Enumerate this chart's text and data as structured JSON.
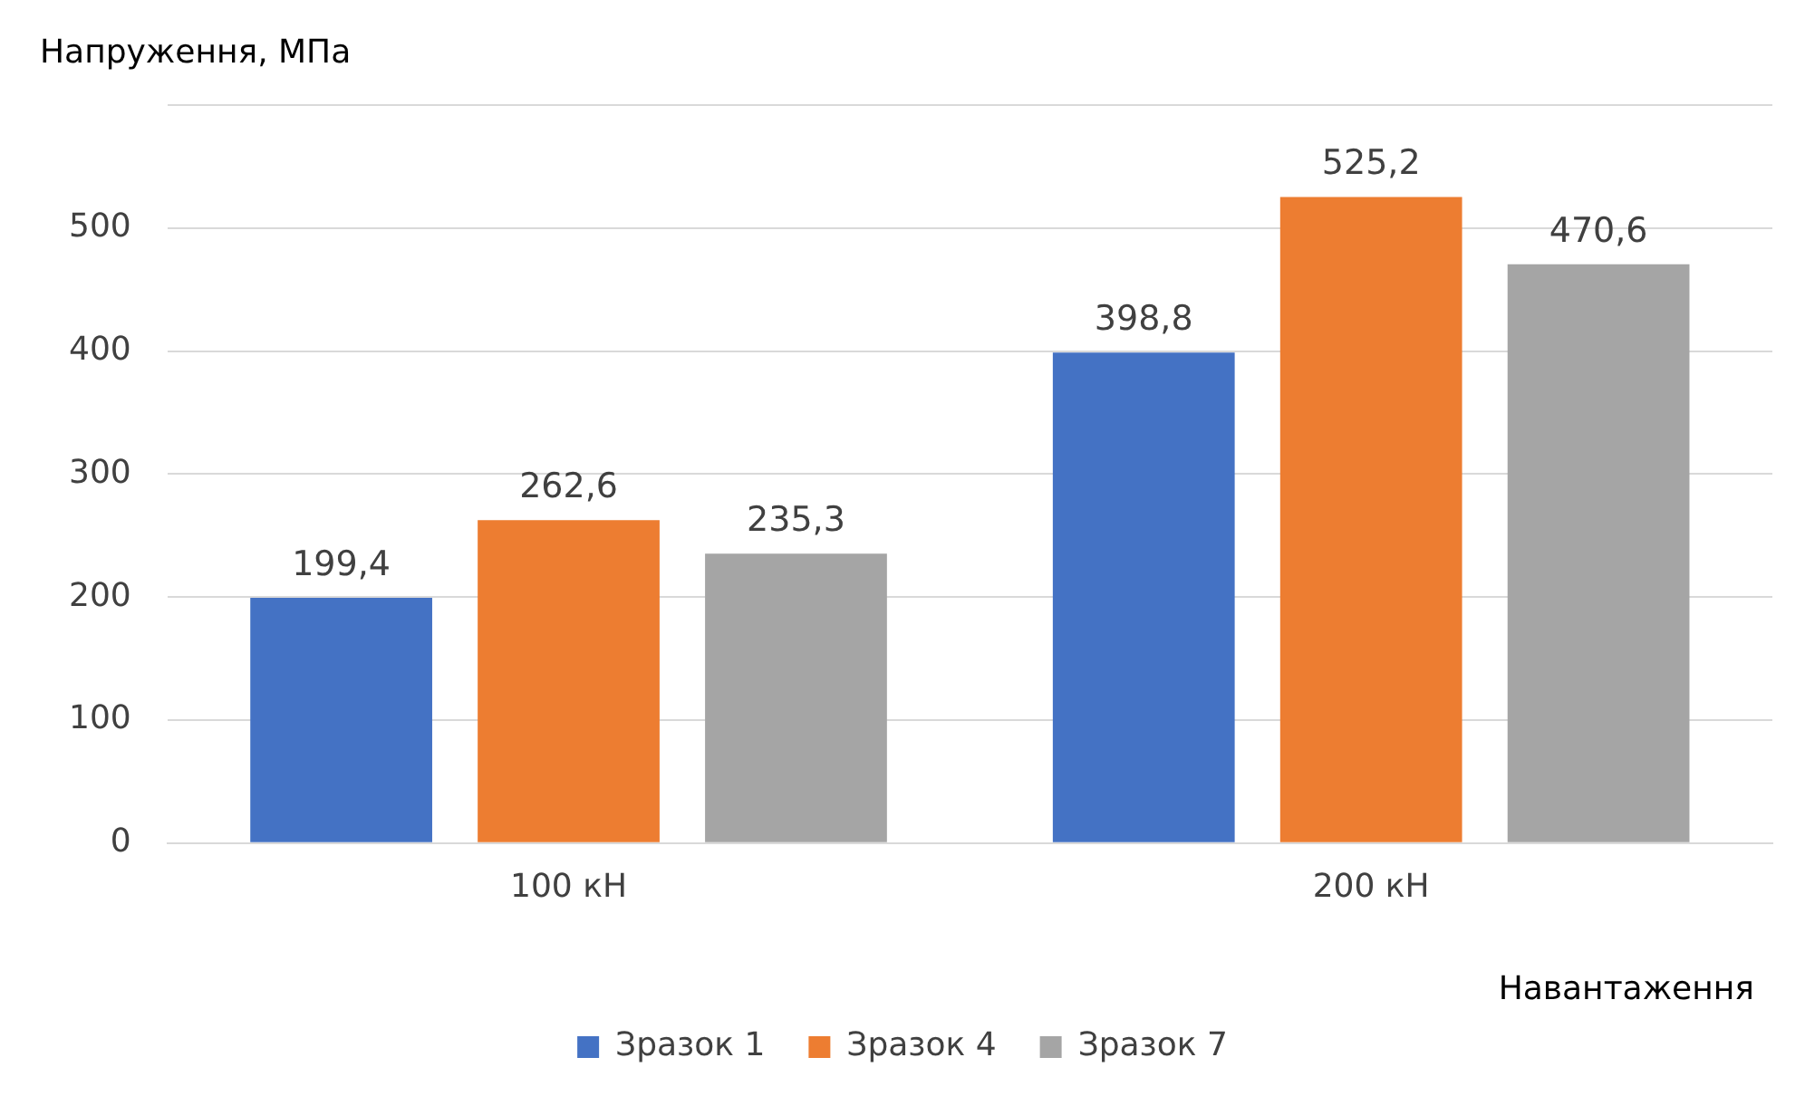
{
  "chart_data": {
    "type": "bar",
    "ylabel": "Напруження, МПа",
    "xlabel": "Навантаження",
    "categories": [
      "100 кН",
      "200 кН"
    ],
    "series": [
      {
        "name": "Зразок 1",
        "color": "#4472c4",
        "values": [
          199.4,
          398.8
        ],
        "value_labels": [
          "199,4",
          "398,8"
        ]
      },
      {
        "name": "Зразок 4",
        "color": "#ed7d31",
        "values": [
          262.6,
          525.2
        ],
        "value_labels": [
          "262,6",
          "525,2"
        ]
      },
      {
        "name": "Зразок 7",
        "color": "#a5a5a5",
        "values": [
          235.3,
          470.6
        ],
        "value_labels": [
          "235,3",
          "470,6"
        ]
      }
    ],
    "ylim": [
      0,
      600
    ],
    "yticks": [
      0,
      100,
      200,
      300,
      400,
      500,
      {
        "value": 600,
        "label": null
      }
    ],
    "grid": "y",
    "legend": "bottom"
  }
}
